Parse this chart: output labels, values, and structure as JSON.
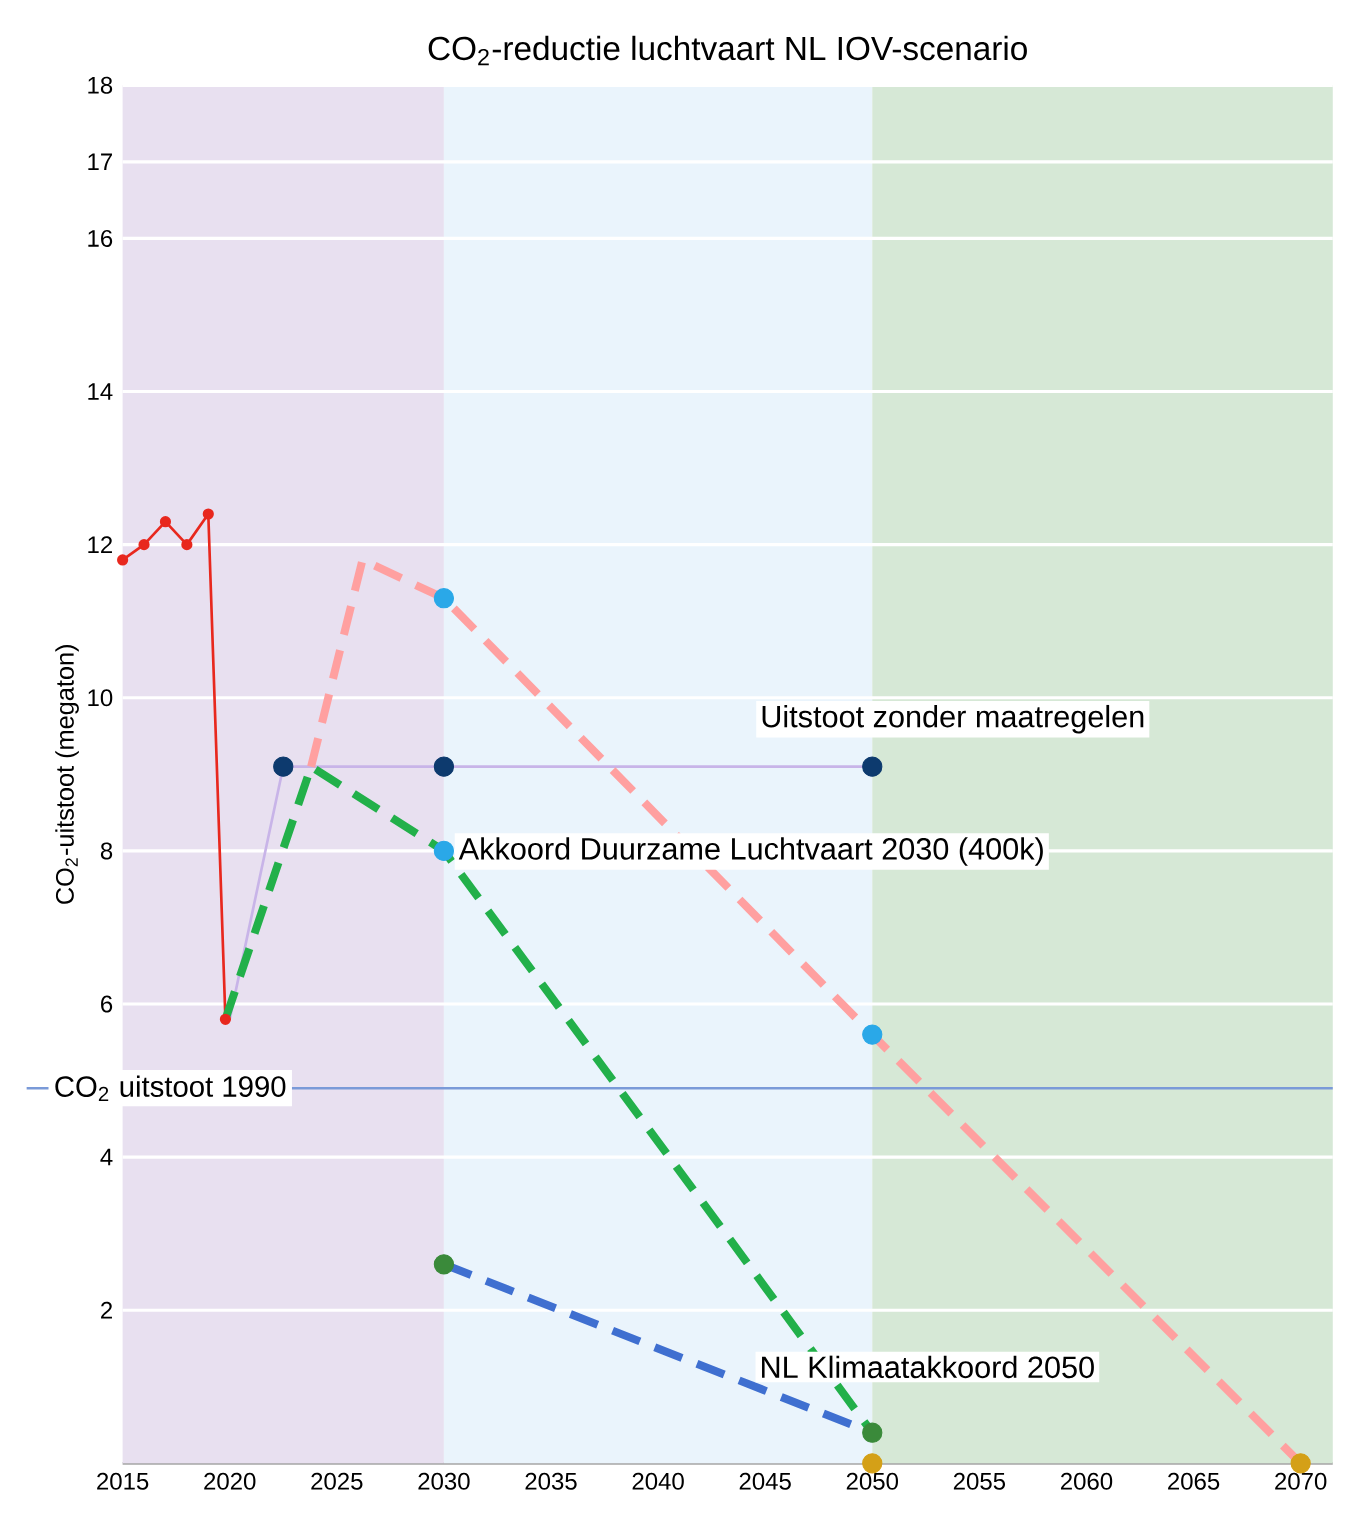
{
  "chart_data": {
    "type": "line",
    "title": "CO$_{2}$-reductie luchtvaart NL   IOV-scenario",
    "ylabel": "CO$_{2}$-uitstoot (megaton)",
    "xlim": [
      2015,
      2071.5
    ],
    "xticks": [
      2015,
      2020,
      2025,
      2030,
      2035,
      2040,
      2045,
      2050,
      2055,
      2060,
      2065,
      2070
    ],
    "ylim": [
      0,
      18
    ],
    "yticks": [
      2,
      4,
      6,
      8,
      10,
      12,
      14,
      16,
      17,
      18
    ],
    "grid": "y",
    "series": [
      {
        "color": "#e8281e",
        "line_style": "solid",
        "marker": "circle",
        "x": [
          2015,
          2016,
          2017,
          2018,
          2019,
          2019.8
        ],
        "values": [
          11.8,
          12.0,
          12.3,
          12.0,
          12.4,
          5.8
        ]
      },
      {
        "color": "#c8b4e8",
        "line_style": "solid",
        "marker": "none",
        "x": [
          2020,
          2022.5,
          2030,
          2050
        ],
        "values": [
          5.8,
          9.1,
          9.1,
          9.1
        ]
      },
      {
        "color": "#22b04a",
        "line_style": "dashed",
        "marker": "none",
        "x": [
          2019.8,
          2023.8,
          2030,
          2050
        ],
        "values": [
          5.8,
          9.1,
          8.0,
          0.4
        ]
      },
      {
        "color": "#ffa0a0",
        "line_style": "dashed",
        "marker": "none",
        "x": [
          2023.8,
          2026.2,
          2030,
          2050,
          2070
        ],
        "values": [
          9.1,
          11.8,
          11.3,
          5.6,
          0
        ]
      },
      {
        "color": "#3f6fd0",
        "line_style": "dashed",
        "marker": "none",
        "x": [
          2030,
          2050
        ],
        "values": [
          2.6,
          0.4
        ]
      },
      {
        "type": "scatter",
        "color": "#0d3a6e",
        "marker": "circle",
        "x": [
          2022.5,
          2030,
          2050
        ],
        "values": [
          9.1,
          9.1,
          9.1
        ]
      },
      {
        "type": "scatter",
        "color": "#2aa8e8",
        "marker": "circle",
        "x": [
          2030,
          2030,
          2050
        ],
        "values": [
          11.3,
          8.0,
          5.6
        ]
      },
      {
        "type": "scatter",
        "color": "#3a8a3a",
        "marker": "circle",
        "x": [
          2030,
          2050
        ],
        "values": [
          2.6,
          0.4
        ]
      },
      {
        "type": "scatter",
        "color": "#d4a017",
        "marker": "circle",
        "x": [
          2050,
          2070
        ],
        "values": [
          0,
          0
        ]
      }
    ],
    "bands": [
      {
        "axis": "x",
        "from": 2015,
        "to": 2030,
        "color": "#e8e0f0"
      },
      {
        "axis": "x",
        "from": 2030,
        "to": 2050,
        "color": "#eaf4fc"
      },
      {
        "axis": "x",
        "from": 2050,
        "to": 2071.5,
        "color": "#d6e8d6"
      }
    ],
    "ref_lines": [
      {
        "axis": "y",
        "value": 4.9,
        "label": "CO$_{2}$ uitstoot 1990",
        "color": "#7a9ad8"
      }
    ],
    "annotations": [
      "Uitstoot zonder maatregelen",
      "Akkoord Duurzame Luchtvaart 2030 (400k)",
      "NL Klimaatakkoord 2050"
    ]
  }
}
